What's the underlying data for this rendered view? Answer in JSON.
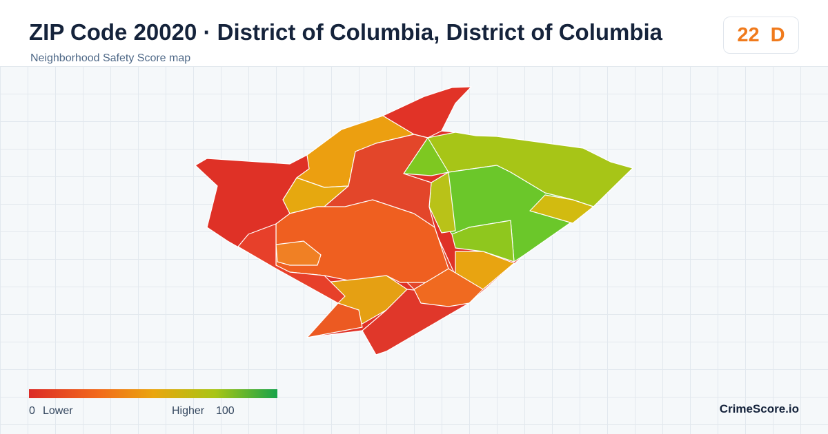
{
  "header": {
    "title": "ZIP Code 20020 · District of Columbia, District of Columbia",
    "subtitle": "Neighborhood Safety Score map"
  },
  "score": {
    "value": 22,
    "grade": "D"
  },
  "legend": {
    "min": 0,
    "min_label": "Lower",
    "max_label": "Higher",
    "max": 100
  },
  "brand": "CrimeScore.io"
}
